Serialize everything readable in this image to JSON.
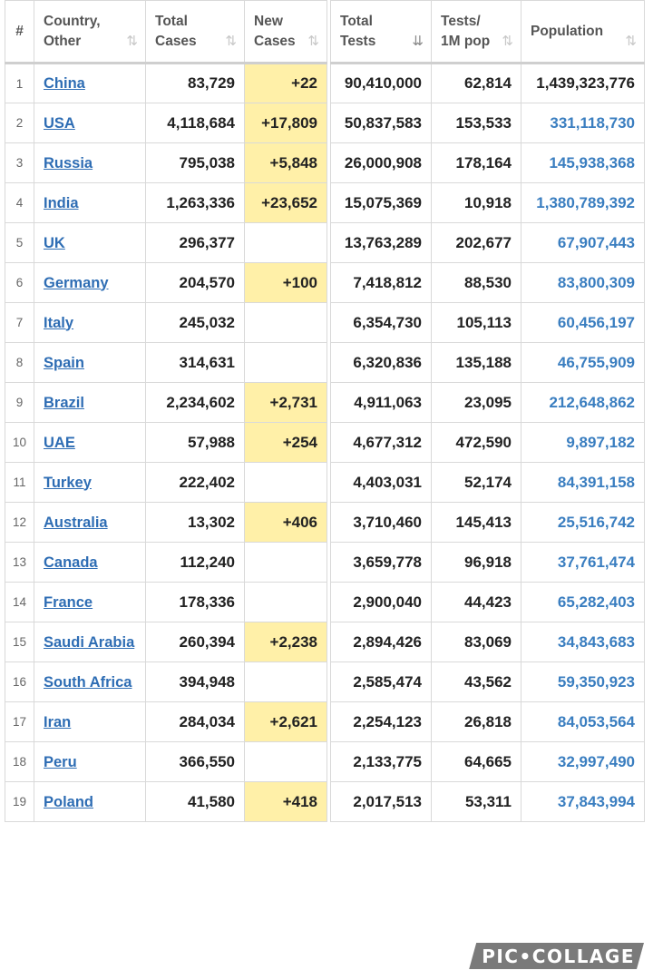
{
  "left_table": {
    "headers": {
      "idx": "#",
      "country_line1": "Country,",
      "country_line2": "Other",
      "total_line1": "Total",
      "total_line2": "Cases",
      "new_line1": "New",
      "new_line2": "Cases"
    },
    "sort_icon": "sort-arrows-icon",
    "rows": [
      {
        "idx": "1",
        "country": "China",
        "total": "83,729",
        "new": "+22"
      },
      {
        "idx": "2",
        "country": "USA",
        "total": "4,118,684",
        "new": "+17,809"
      },
      {
        "idx": "3",
        "country": "Russia",
        "total": "795,038",
        "new": "+5,848"
      },
      {
        "idx": "4",
        "country": "India",
        "total": "1,263,336",
        "new": "+23,652"
      },
      {
        "idx": "5",
        "country": "UK",
        "total": "296,377",
        "new": ""
      },
      {
        "idx": "6",
        "country": "Germany",
        "total": "204,570",
        "new": "+100"
      },
      {
        "idx": "7",
        "country": "Italy",
        "total": "245,032",
        "new": ""
      },
      {
        "idx": "8",
        "country": "Spain",
        "total": "314,631",
        "new": ""
      },
      {
        "idx": "9",
        "country": "Brazil",
        "total": "2,234,602",
        "new": "+2,731"
      },
      {
        "idx": "10",
        "country": "UAE",
        "total": "57,988",
        "new": "+254"
      },
      {
        "idx": "11",
        "country": "Turkey",
        "total": "222,402",
        "new": ""
      },
      {
        "idx": "12",
        "country": "Australia",
        "total": "13,302",
        "new": "+406"
      },
      {
        "idx": "13",
        "country": "Canada",
        "total": "112,240",
        "new": ""
      },
      {
        "idx": "14",
        "country": "France",
        "total": "178,336",
        "new": ""
      },
      {
        "idx": "15",
        "country": "Saudi Arabia",
        "total": "260,394",
        "new": "+2,238"
      },
      {
        "idx": "16",
        "country": "South Africa",
        "total": "394,948",
        "new": ""
      },
      {
        "idx": "17",
        "country": "Iran",
        "total": "284,034",
        "new": "+2,621"
      },
      {
        "idx": "18",
        "country": "Peru",
        "total": "366,550",
        "new": ""
      },
      {
        "idx": "19",
        "country": "Poland",
        "total": "41,580",
        "new": "+418"
      }
    ]
  },
  "right_table": {
    "headers": {
      "tests_line1": "Total",
      "tests_line2": "Tests",
      "perm_line1": "Tests/",
      "perm_line2": "1M pop",
      "pop_line1": "Population"
    },
    "sort_icon_active": "sort-descending-icon",
    "rows": [
      {
        "tests": "90,410,000",
        "per_m": "62,814",
        "pop": "1,439,323,776"
      },
      {
        "tests": "50,837,583",
        "per_m": "153,533",
        "pop": "331,118,730"
      },
      {
        "tests": "26,000,908",
        "per_m": "178,164",
        "pop": "145,938,368"
      },
      {
        "tests": "15,075,369",
        "per_m": "10,918",
        "pop": "1,380,789,392"
      },
      {
        "tests": "13,763,289",
        "per_m": "202,677",
        "pop": "67,907,443"
      },
      {
        "tests": "7,418,812",
        "per_m": "88,530",
        "pop": "83,800,309"
      },
      {
        "tests": "6,354,730",
        "per_m": "105,113",
        "pop": "60,456,197"
      },
      {
        "tests": "6,320,836",
        "per_m": "135,188",
        "pop": "46,755,909"
      },
      {
        "tests": "4,911,063",
        "per_m": "23,095",
        "pop": "212,648,862"
      },
      {
        "tests": "4,677,312",
        "per_m": "472,590",
        "pop": "9,897,182"
      },
      {
        "tests": "4,403,031",
        "per_m": "52,174",
        "pop": "84,391,158"
      },
      {
        "tests": "3,710,460",
        "per_m": "145,413",
        "pop": "25,516,742"
      },
      {
        "tests": "3,659,778",
        "per_m": "96,918",
        "pop": "37,761,474"
      },
      {
        "tests": "2,900,040",
        "per_m": "44,423",
        "pop": "65,282,403"
      },
      {
        "tests": "2,894,426",
        "per_m": "83,069",
        "pop": "34,843,683"
      },
      {
        "tests": "2,585,474",
        "per_m": "43,562",
        "pop": "59,350,923"
      },
      {
        "tests": "2,254,123",
        "per_m": "26,818",
        "pop": "84,053,564"
      },
      {
        "tests": "2,133,775",
        "per_m": "64,665",
        "pop": "32,997,490"
      },
      {
        "tests": "2,017,513",
        "per_m": "53,311",
        "pop": "37,843,994"
      }
    ]
  },
  "colors": {
    "highlight": "#fff0a8",
    "link": "#2e6db4",
    "population": "#3a7ec0"
  },
  "watermark": "PIC•COLLAGE"
}
